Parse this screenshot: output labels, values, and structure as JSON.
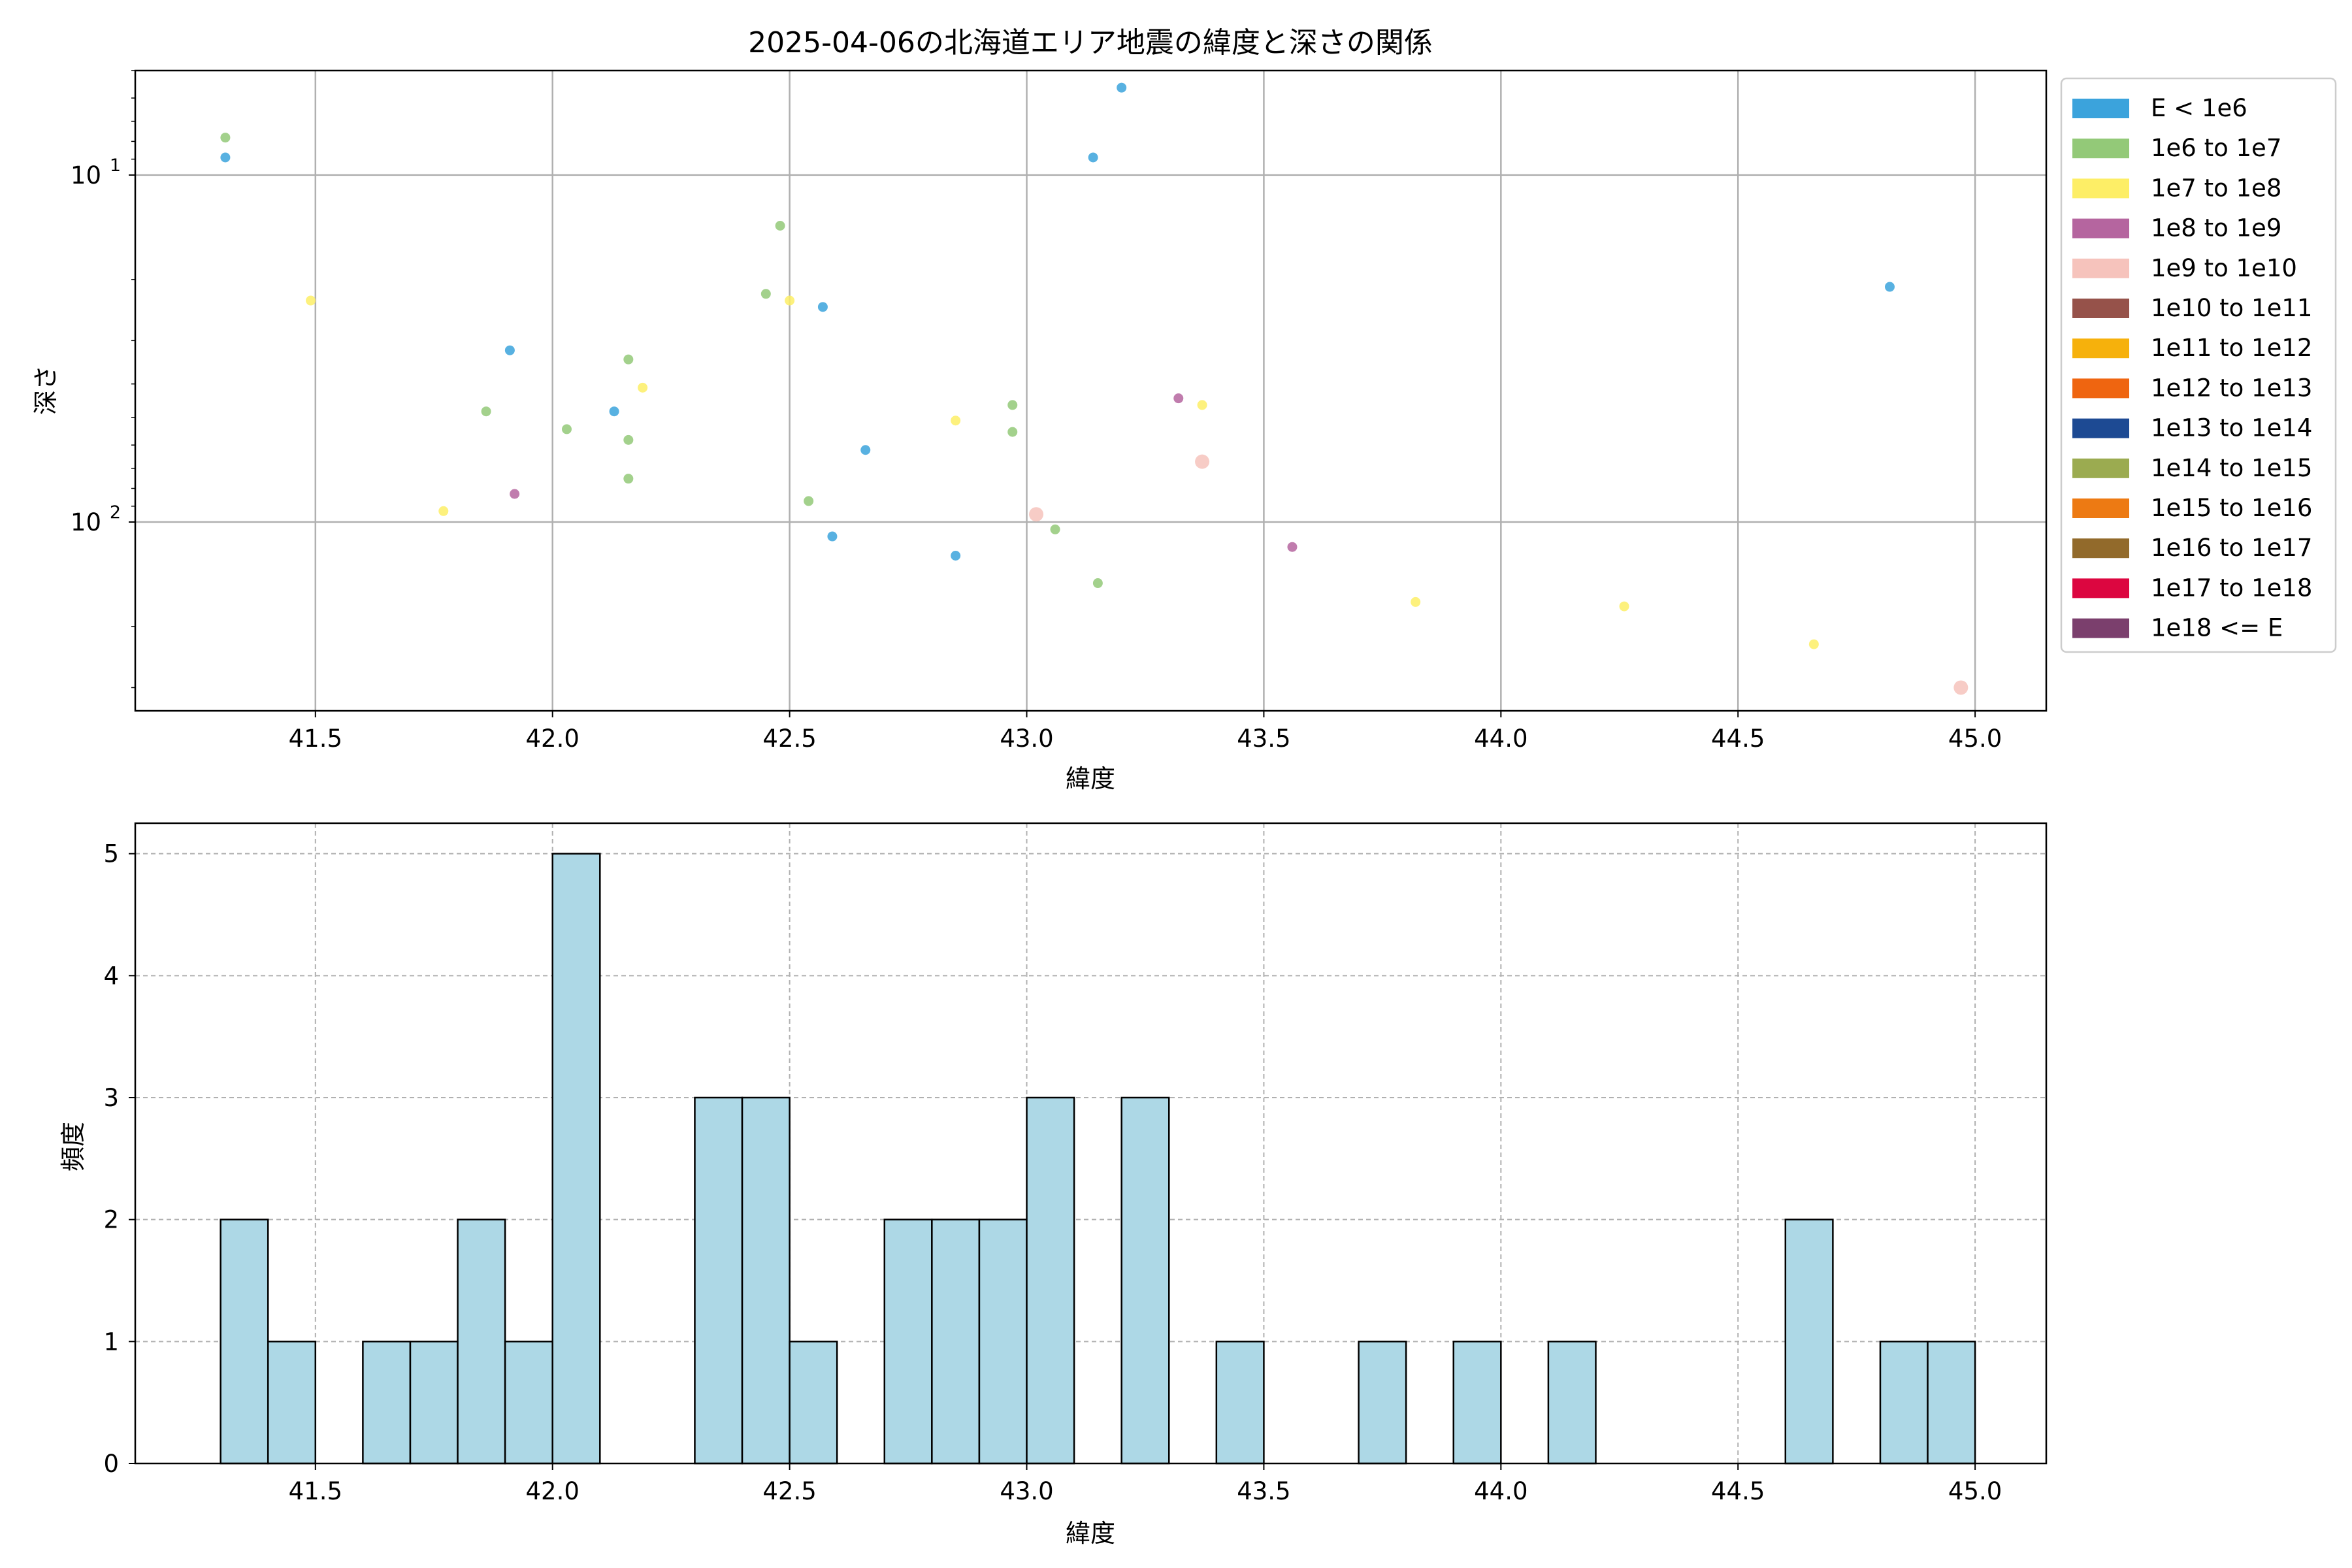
{
  "chart_data": [
    {
      "type": "scatter",
      "title": "2025-04-06の北海道エリア地震の緯度と深さの関係",
      "xlabel": "緯度",
      "ylabel": "深さ",
      "xlim": [
        41.12,
        45.15
      ],
      "ylim": [
        350,
        5
      ],
      "yscale": "log",
      "y_inverted": true,
      "grid": true,
      "xticks": [
        41.5,
        42.0,
        42.5,
        43.0,
        43.5,
        44.0,
        44.5,
        45.0
      ],
      "xtick_labels": [
        "41.5",
        "42.0",
        "42.5",
        "43.0",
        "43.5",
        "44.0",
        "44.5",
        "45.0"
      ],
      "yticks": [
        10,
        100
      ],
      "legend_position": "outside-right",
      "legend": [
        {
          "label": "E < 1e6",
          "color": "#3ba3dc"
        },
        {
          "label": "1e6 to 1e7",
          "color": "#93c978"
        },
        {
          "label": "1e7 to 1e8",
          "color": "#fdee66"
        },
        {
          "label": "1e8 to 1e9",
          "color": "#b5659f"
        },
        {
          "label": "1e9 to 1e10",
          "color": "#f6c3bc"
        },
        {
          "label": "1e10 to 1e11",
          "color": "#96524a"
        },
        {
          "label": "1e11 to 1e12",
          "color": "#f6b10c"
        },
        {
          "label": "1e12 to 1e13",
          "color": "#ef6510"
        },
        {
          "label": "1e13 to 1e14",
          "color": "#1d4a93"
        },
        {
          "label": "1e14 to 1e15",
          "color": "#9bab50"
        },
        {
          "label": "1e15 to 1e16",
          "color": "#ed7a13"
        },
        {
          "label": "1e16 to 1e17",
          "color": "#926a2b"
        },
        {
          "label": "1e17 to 1e18",
          "color": "#dc0640"
        },
        {
          "label": "1e18 <= E",
          "color": "#7b3f6d"
        }
      ],
      "series": [
        {
          "name": "E < 1e6",
          "points": [
            [
              41.31,
              8.9
            ],
            [
              41.91,
              32
            ],
            [
              42.13,
              48
            ],
            [
              42.57,
              24
            ],
            [
              42.59,
              110
            ],
            [
              42.66,
              62
            ],
            [
              42.85,
              125
            ],
            [
              43.14,
              8.9
            ],
            [
              43.2,
              5.6
            ],
            [
              44.82,
              21
            ]
          ]
        },
        {
          "name": "1e6 to 1e7",
          "points": [
            [
              41.31,
              7.8
            ],
            [
              41.86,
              48
            ],
            [
              42.03,
              54
            ],
            [
              42.16,
              34
            ],
            [
              42.16,
              58
            ],
            [
              42.16,
              75
            ],
            [
              42.45,
              22
            ],
            [
              42.48,
              14
            ],
            [
              42.54,
              87
            ],
            [
              42.97,
              46
            ],
            [
              42.97,
              55
            ],
            [
              43.06,
              105
            ],
            [
              43.15,
              150
            ]
          ]
        },
        {
          "name": "1e7 to 1e8",
          "points": [
            [
              41.49,
              23
            ],
            [
              41.77,
              93
            ],
            [
              42.19,
              41
            ],
            [
              42.5,
              23
            ],
            [
              42.85,
              51
            ],
            [
              43.37,
              46
            ],
            [
              43.82,
              170
            ],
            [
              44.26,
              175
            ],
            [
              44.66,
              225
            ]
          ]
        },
        {
          "name": "1e8 to 1e9",
          "points": [
            [
              41.92,
              83
            ],
            [
              43.32,
              44
            ],
            [
              43.56,
              118
            ]
          ]
        },
        {
          "name": "1e9 to 1e10",
          "points": [
            [
              43.02,
              95
            ],
            [
              43.37,
              67
            ],
            [
              44.97,
              300
            ]
          ]
        }
      ]
    },
    {
      "type": "bar",
      "subtype": "histogram",
      "xlabel": "緯度",
      "ylabel": "頻度",
      "xlim": [
        41.12,
        45.15
      ],
      "ylim": [
        0,
        5.25
      ],
      "grid": true,
      "xticks": [
        41.5,
        42.0,
        42.5,
        43.0,
        43.5,
        44.0,
        44.5,
        45.0
      ],
      "xtick_labels": [
        "41.5",
        "42.0",
        "42.5",
        "43.0",
        "43.5",
        "44.0",
        "44.5",
        "45.0"
      ],
      "yticks": [
        0,
        1,
        2,
        3,
        4,
        5
      ],
      "ytick_labels": [
        "0",
        "1",
        "2",
        "3",
        "4",
        "5"
      ],
      "bin_start": 41.3,
      "bin_width": 0.1,
      "counts": [
        2,
        1,
        0,
        1,
        1,
        2,
        1,
        5,
        0,
        0,
        3,
        3,
        1,
        0,
        2,
        2,
        2,
        3,
        0,
        3,
        0,
        1,
        0,
        0,
        1,
        0,
        1,
        0,
        1,
        0,
        0,
        0,
        0,
        2,
        0,
        1,
        1
      ],
      "bar_color": "#add8e6",
      "edge_color": "#000000"
    }
  ]
}
